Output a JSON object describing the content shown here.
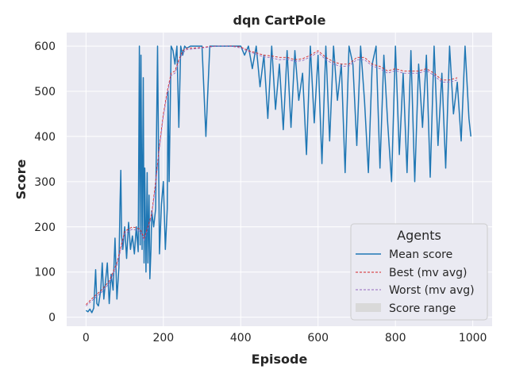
{
  "chart_data": {
    "type": "line",
    "title": "dqn CartPole",
    "xlabel": "Episode",
    "ylabel": "Score",
    "xlim": [
      -50,
      1050
    ],
    "ylim": [
      -20,
      630
    ],
    "xticks": [
      0,
      200,
      400,
      600,
      800,
      1000
    ],
    "yticks": [
      0,
      100,
      200,
      300,
      400,
      500,
      600
    ],
    "grid": true,
    "legend": {
      "title": "Agents",
      "placement": "lower-right",
      "entries": [
        "Mean score",
        "Best (mv avg)",
        "Worst (mv avg)",
        "Score range"
      ]
    },
    "colors": {
      "mean": "#1f77b4",
      "best": "#d62728",
      "worst": "#9467bd",
      "range": "#d9d9d9",
      "background": "#eaeaf2",
      "grid": "#ffffff"
    },
    "series": [
      {
        "name": "Mean score",
        "x": [
          0,
          5,
          10,
          15,
          20,
          25,
          28,
          32,
          38,
          42,
          46,
          50,
          55,
          60,
          65,
          70,
          75,
          80,
          85,
          88,
          90,
          92,
          95,
          100,
          105,
          110,
          115,
          120,
          125,
          130,
          135,
          138,
          140,
          142,
          145,
          148,
          150,
          152,
          155,
          158,
          160,
          163,
          165,
          168,
          170,
          175,
          180,
          185,
          190,
          195,
          200,
          205,
          210,
          212,
          215,
          220,
          225,
          230,
          235,
          240,
          245,
          250,
          255,
          260,
          270,
          280,
          300,
          310,
          320,
          340,
          360,
          380,
          400,
          410,
          420,
          430,
          440,
          450,
          460,
          470,
          480,
          490,
          500,
          510,
          520,
          530,
          540,
          550,
          560,
          570,
          580,
          590,
          600,
          610,
          620,
          630,
          640,
          650,
          660,
          670,
          680,
          690,
          700,
          710,
          720,
          730,
          740,
          750,
          760,
          770,
          780,
          790,
          800,
          810,
          820,
          830,
          840,
          850,
          860,
          870,
          880,
          890,
          900,
          910,
          920,
          930,
          940,
          950,
          960,
          970,
          980,
          990,
          995
        ],
        "y": [
          15,
          12,
          18,
          10,
          20,
          105,
          30,
          25,
          60,
          120,
          40,
          75,
          120,
          30,
          95,
          60,
          175,
          40,
          110,
          250,
          325,
          180,
          150,
          200,
          130,
          210,
          150,
          180,
          140,
          200,
          145,
          600,
          160,
          580,
          150,
          530,
          120,
          330,
          100,
          320,
          120,
          270,
          85,
          150,
          235,
          200,
          240,
          600,
          140,
          250,
          300,
          150,
          240,
          500,
          300,
          600,
          590,
          560,
          600,
          420,
          600,
          580,
          600,
          595,
          600,
          600,
          600,
          400,
          600,
          600,
          600,
          600,
          600,
          580,
          600,
          550,
          600,
          510,
          580,
          440,
          600,
          460,
          560,
          415,
          590,
          420,
          590,
          480,
          540,
          360,
          600,
          430,
          580,
          340,
          600,
          390,
          600,
          480,
          560,
          320,
          600,
          560,
          380,
          600,
          480,
          320,
          560,
          600,
          330,
          580,
          430,
          300,
          600,
          360,
          540,
          320,
          590,
          300,
          560,
          420,
          580,
          310,
          600,
          380,
          540,
          330,
          600,
          450,
          520,
          390,
          600,
          440,
          400
        ]
      },
      {
        "name": "Best (mv avg)",
        "x": [
          0,
          20,
          40,
          60,
          80,
          100,
          120,
          140,
          150,
          160,
          170,
          180,
          190,
          200,
          210,
          220,
          230,
          240,
          250,
          260,
          280,
          300,
          320,
          340,
          360,
          380,
          400,
          420,
          440,
          460,
          480,
          500,
          520,
          540,
          560,
          580,
          600,
          620,
          640,
          660,
          680,
          700,
          720,
          740,
          760,
          780,
          800,
          820,
          840,
          860,
          880,
          900,
          920,
          940,
          960
        ],
        "y": [
          28,
          45,
          60,
          80,
          120,
          190,
          200,
          195,
          175,
          200,
          230,
          300,
          380,
          450,
          500,
          540,
          545,
          570,
          590,
          595,
          596,
          597,
          599,
          600,
          600,
          600,
          598,
          590,
          585,
          580,
          578,
          575,
          575,
          570,
          572,
          580,
          590,
          575,
          565,
          560,
          560,
          575,
          575,
          560,
          555,
          545,
          550,
          545,
          545,
          545,
          550,
          540,
          525,
          525,
          530
        ]
      },
      {
        "name": "Worst (mv avg)",
        "x": [
          0,
          20,
          40,
          60,
          80,
          100,
          120,
          140,
          150,
          160,
          170,
          180,
          190,
          200,
          210,
          220,
          230,
          240,
          250,
          260,
          280,
          300,
          320,
          340,
          360,
          380,
          400,
          420,
          440,
          460,
          480,
          500,
          520,
          540,
          560,
          580,
          600,
          620,
          640,
          660,
          680,
          700,
          720,
          740,
          760,
          780,
          800,
          820,
          840,
          860,
          880,
          900,
          920,
          940,
          960
        ],
        "y": [
          25,
          40,
          55,
          75,
          115,
          185,
          195,
          190,
          170,
          195,
          225,
          295,
          375,
          445,
          495,
          535,
          540,
          565,
          585,
          592,
          594,
          596,
          598,
          600,
          600,
          599,
          596,
          588,
          582,
          576,
          574,
          570,
          571,
          566,
          568,
          576,
          586,
          570,
          560,
          555,
          556,
          570,
          570,
          556,
          550,
          540,
          546,
          540,
          540,
          540,
          546,
          535,
          520,
          520,
          525
        ]
      }
    ]
  }
}
